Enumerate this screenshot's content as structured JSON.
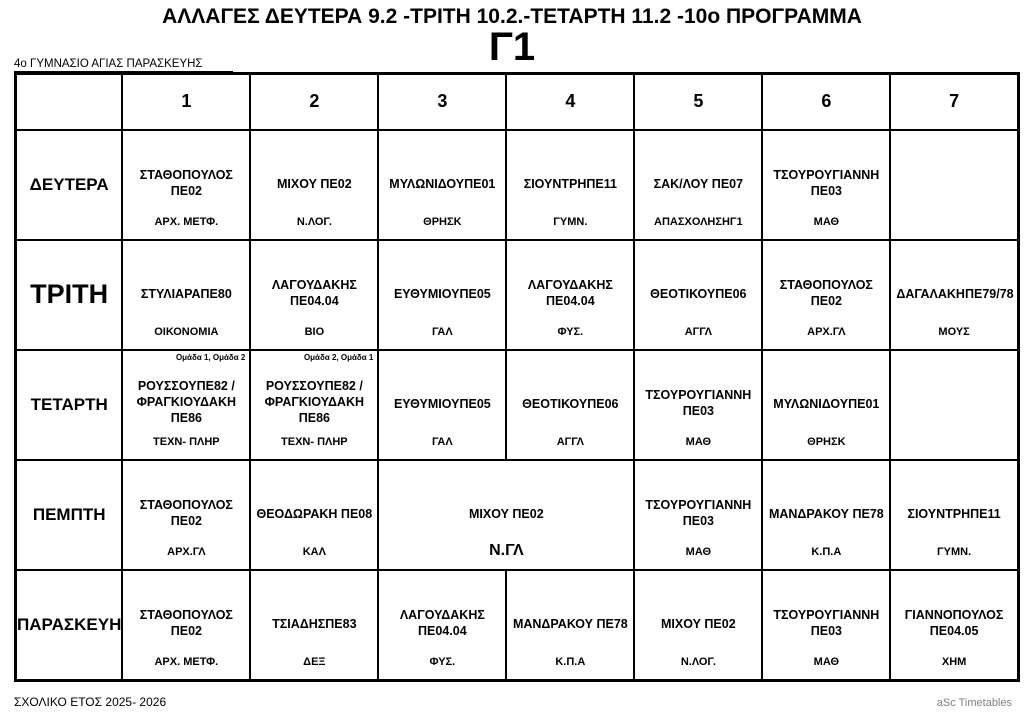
{
  "header": {
    "title": "ΑΛΛΑΓΕΣ ΔΕΥΤΕΡΑ 9.2 -ΤΡΙΤΗ 10.2.-ΤΕΤΑΡΤΗ 11.2 -10ο ΠΡΟΓΡΑΜΜΑ",
    "class_name": "Γ1",
    "school_name": "4ο ΓΥΜΝΑΣΙΟ ΑΓΙΑΣ ΠΑΡΑΣΚΕΥΗΣ"
  },
  "footer": {
    "school_year": "ΣΧΟΛΙΚΟ ΕΤΟΣ 2025- 2026",
    "generator": "aSc Timetables"
  },
  "timetable": {
    "period_headers": [
      "1",
      "2",
      "3",
      "4",
      "5",
      "6",
      "7"
    ],
    "rows": [
      {
        "day": "ΔΕΥΤΕΡΑ",
        "cells": [
          {
            "teacher": "ΣΤΑΘΟΠΟΥΛΟΣ ΠΕ02",
            "subject": "ΑΡΧ. ΜΕΤΦ."
          },
          {
            "teacher": "ΜΙΧΟΥ ΠΕ02",
            "subject": "Ν.ΛΟΓ."
          },
          {
            "teacher": "ΜΥΛΩΝΙΔΟΥΠΕ01",
            "subject": "ΘΡΗΣΚ"
          },
          {
            "teacher": "ΣΙΟΥΝΤΡΗΠΕ11",
            "subject": "ΓΥΜΝ."
          },
          {
            "teacher": "ΣΑΚ/ΛΟΥ ΠΕ07",
            "subject": "ΑΠΑΣΧΟΛΗΣΗΓ1"
          },
          {
            "teacher": "ΤΣΟΥΡΟΥΓΙΑΝΝΗ ΠΕ03",
            "subject": "ΜΑΘ"
          },
          {
            "teacher": "",
            "subject": ""
          }
        ]
      },
      {
        "day": "ΤΡΙΤΗ",
        "cells": [
          {
            "teacher": "ΣΤΥΛΙΑΡΑΠΕ80",
            "subject": "ΟΙΚΟΝΟΜΙΑ"
          },
          {
            "teacher": "ΛΑΓΟΥΔΑΚΗΣ ΠΕ04.04",
            "subject": "ΒΙΟ"
          },
          {
            "teacher": "ΕΥΘΥΜΙΟΥΠΕ05",
            "subject": "ΓΑΛ"
          },
          {
            "teacher": "ΛΑΓΟΥΔΑΚΗΣ ΠΕ04.04",
            "subject": "ΦΥΣ."
          },
          {
            "teacher": "ΘΕΟΤΙΚΟΥΠΕ06",
            "subject": "ΑΓΓΛ"
          },
          {
            "teacher": "ΣΤΑΘΟΠΟΥΛΟΣ ΠΕ02",
            "subject": "ΑΡΧ.ΓΛ"
          },
          {
            "teacher": "ΔΑΓΑΛΑΚΗΠΕ79/78",
            "subject": "ΜΟΥΣ"
          }
        ]
      },
      {
        "day": "ΤΕΤΑΡΤΗ",
        "cells": [
          {
            "note": "Ομάδα 1, Ομάδα 2",
            "teacher": "ΡΟΥΣΣΟΥΠΕ82 / ΦΡΑΓΚΙΟΥΔΑΚΗ ΠΕ86",
            "subject": "ΤΕΧΝ- ΠΛΗΡ"
          },
          {
            "note": "Ομάδα 2, Ομάδα 1",
            "teacher": "ΡΟΥΣΣΟΥΠΕ82 / ΦΡΑΓΚΙΟΥΔΑΚΗ ΠΕ86",
            "subject": "ΤΕΧΝ- ΠΛΗΡ"
          },
          {
            "teacher": "ΕΥΘΥΜΙΟΥΠΕ05",
            "subject": "ΓΑΛ"
          },
          {
            "teacher": "ΘΕΟΤΙΚΟΥΠΕ06",
            "subject": "ΑΓΓΛ"
          },
          {
            "teacher": "ΤΣΟΥΡΟΥΓΙΑΝΝΗ ΠΕ03",
            "subject": "ΜΑΘ"
          },
          {
            "teacher": "ΜΥΛΩΝΙΔΟΥΠΕ01",
            "subject": "ΘΡΗΣΚ"
          },
          {
            "teacher": "",
            "subject": ""
          }
        ]
      },
      {
        "day": "ΠΕΜΠΤΗ",
        "cells": [
          {
            "teacher": "ΣΤΑΘΟΠΟΥΛΟΣ ΠΕ02",
            "subject": "ΑΡΧ.ΓΛ"
          },
          {
            "teacher": "ΘΕΟΔΩΡΑΚΗ ΠΕ08",
            "subject": "ΚΑΛ"
          },
          {
            "teacher": "ΜΙΧΟΥ ΠΕ02",
            "subject": "Ν.ΓΛ",
            "colspan": 2
          },
          {
            "teacher": "ΤΣΟΥΡΟΥΓΙΑΝΝΗ ΠΕ03",
            "subject": "ΜΑΘ"
          },
          {
            "teacher": "ΜΑΝΔΡΑΚΟΥ ΠΕ78",
            "subject": "Κ.Π.Α"
          },
          {
            "teacher": "ΣΙΟΥΝΤΡΗΠΕ11",
            "subject": "ΓΥΜΝ."
          }
        ]
      },
      {
        "day": "ΠΑΡΑΣΚΕΥΗ",
        "cells": [
          {
            "teacher": "ΣΤΑΘΟΠΟΥΛΟΣ ΠΕ02",
            "subject": "ΑΡΧ. ΜΕΤΦ."
          },
          {
            "teacher": "ΤΣΙΑΔΗΣΠΕ83",
            "subject": "ΔΕΞ"
          },
          {
            "teacher": "ΛΑΓΟΥΔΑΚΗΣ ΠΕ04.04",
            "subject": "ΦΥΣ."
          },
          {
            "teacher": "ΜΑΝΔΡΑΚΟΥ ΠΕ78",
            "subject": "Κ.Π.Α"
          },
          {
            "teacher": "ΜΙΧΟΥ ΠΕ02",
            "subject": "Ν.ΛΟΓ."
          },
          {
            "teacher": "ΤΣΟΥΡΟΥΓΙΑΝΝΗ ΠΕ03",
            "subject": "ΜΑΘ"
          },
          {
            "teacher": "ΓΙΑΝΝΟΠΟΥΛΟΣ ΠΕ04.05",
            "subject": "ΧΗΜ"
          }
        ]
      }
    ]
  }
}
